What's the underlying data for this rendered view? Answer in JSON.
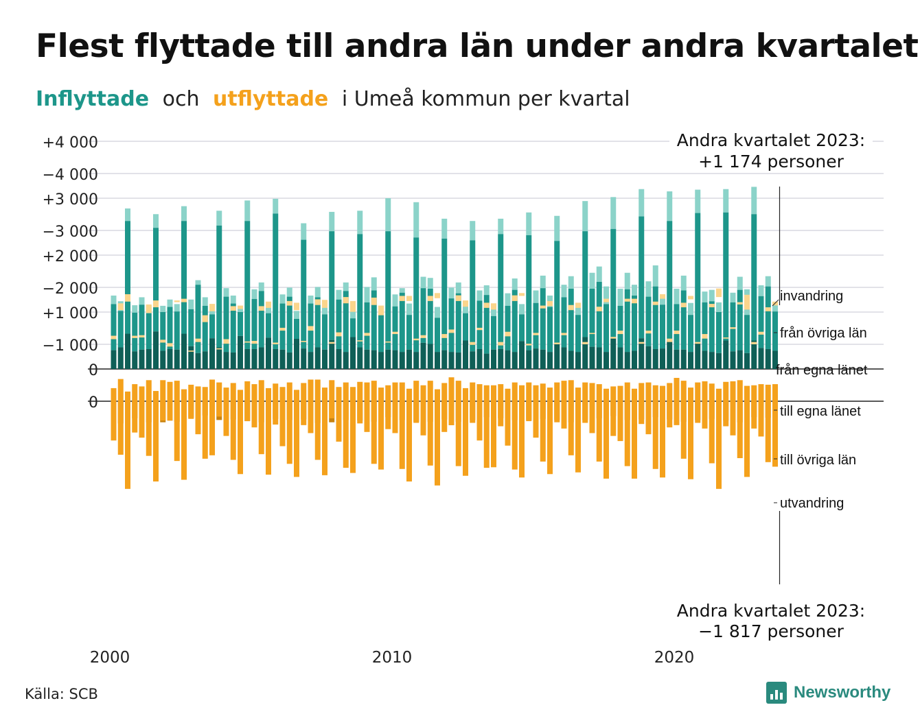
{
  "title": "Flest flyttade till andra län under andra kvartalet",
  "subtitle": {
    "in": "Inflyttade",
    "och": "och",
    "out": "utflyttade",
    "rest": "i Umeå kommun per kvartal"
  },
  "source": "Källa: SCB",
  "brand": "Newsworthy",
  "colors": {
    "in_egna": "#0f5f57",
    "in_ovriga": "#1d968a",
    "in_invandring": "#8bd3c9",
    "out_egna": "#c7820f",
    "out_ovriga": "#f4a11c",
    "out_utvandring": "#fbd58c"
  },
  "chart_data": {
    "type": "bar",
    "stacked": true,
    "x_start": "2000 Q1",
    "x_ticks": [
      "2000",
      "2010",
      "2020"
    ],
    "y_ticks_top": [
      "+4 000",
      "+3 000",
      "+2 000",
      "+1 000",
      "0"
    ],
    "y_ticks_bottom": [
      "0",
      "−1 000",
      "−2 000",
      "−3 000",
      "−4 000"
    ],
    "ylim_top": [
      0,
      4000
    ],
    "ylim_bottom": [
      -4000,
      0
    ],
    "series_labels": {
      "invandring": "invandring",
      "fran_ovriga": "från övriga län",
      "fran_egna": "från egna länet",
      "till_egna": "till egna länet",
      "till_ovriga": "till övriga län",
      "utvandring": "utvandring"
    },
    "annotation_top": {
      "line1": "Andra kvartalet 2023:",
      "line2": "+1 174 personer"
    },
    "annotation_bottom": {
      "line1": "Andra kvartalet 2023:",
      "line2": "−1 817 personer"
    },
    "inflyttade_total": [
      1290,
      1190,
      2820,
      1120,
      1260,
      1120,
      2720,
      1110,
      1220,
      1140,
      2860,
      1220,
      1560,
      1260,
      1080,
      2780,
      1420,
      1290,
      1070,
      2960,
      1400,
      1520,
      1130,
      2990,
      1310,
      1430,
      1020,
      2560,
      1290,
      1440,
      1120,
      2760,
      1390,
      1520,
      1070,
      2780,
      1440,
      1610,
      1080,
      3000,
      1310,
      1420,
      1150,
      2930,
      1620,
      1600,
      1090,
      2640,
      1430,
      1520,
      1150,
      2600,
      1380,
      1470,
      1110,
      2640,
      1330,
      1590,
      1140,
      2750,
      1380,
      1640,
      1290,
      2690,
      1480,
      1630,
      1130,
      2950,
      1690,
      1800,
      1450,
      3020,
      1410,
      1690,
      1480,
      3160,
      1540,
      1820,
      1290,
      3120,
      1410,
      1640,
      1160,
      3150,
      1360,
      1390,
      1170,
      3160,
      1340,
      1620,
      1400,
      3200,
      1470,
      1630,
      1174
    ],
    "inflyttade_ovriga_cum": [
      1140,
      1020,
      2600,
      990,
      1130,
      980,
      2480,
      1000,
      1090,
      1010,
      2600,
      1050,
      1480,
      1110,
      960,
      2520,
      1270,
      1150,
      1000,
      2600,
      1230,
      1370,
      980,
      2730,
      1150,
      1270,
      880,
      2270,
      1150,
      1260,
      960,
      2420,
      1220,
      1370,
      890,
      2370,
      1170,
      1380,
      960,
      2420,
      1100,
      1340,
      950,
      2310,
      1420,
      1410,
      900,
      2290,
      1240,
      1330,
      980,
      2260,
      1200,
      1300,
      930,
      2370,
      1110,
      1390,
      960,
      2350,
      1160,
      1420,
      1090,
      2250,
      1260,
      1410,
      950,
      2420,
      1410,
      1530,
      1140,
      2460,
      1110,
      1400,
      1290,
      2680,
      1270,
      1450,
      1130,
      2600,
      1140,
      1380,
      950,
      2740,
      1170,
      1190,
      1000,
      2750,
      1170,
      1390,
      950,
      2720,
      1280,
      1450,
      1010
    ],
    "inflyttade_egna": [
      330,
      380,
      620,
      310,
      340,
      350,
      660,
      320,
      350,
      340,
      620,
      400,
      280,
      310,
      540,
      380,
      300,
      290,
      580,
      350,
      350,
      380,
      550,
      350,
      340,
      290,
      530,
      360,
      300,
      380,
      340,
      510,
      350,
      300,
      560,
      380,
      340,
      330,
      300,
      340,
      330,
      300,
      340,
      300,
      460,
      440,
      300,
      330,
      300,
      290,
      500,
      310,
      350,
      270,
      340,
      350,
      330,
      300,
      490,
      330,
      360,
      340,
      300,
      440,
      380,
      320,
      300,
      560,
      390,
      380,
      300,
      560,
      380,
      300,
      320,
      540,
      400,
      350,
      360,
      520,
      340,
      340,
      300,
      460,
      320,
      300,
      280,
      500,
      310,
      330,
      280,
      500,
      370,
      350,
      320
    ],
    "utflyttade_egna": [
      230,
      390,
      170,
      300,
      260,
      370,
      180,
      370,
      340,
      360,
      210,
      290,
      260,
      250,
      380,
      330,
      240,
      320,
      200,
      350,
      300,
      370,
      230,
      310,
      250,
      330,
      200,
      320,
      380,
      380,
      240,
      370,
      250,
      330,
      250,
      340,
      330,
      360,
      240,
      280,
      330,
      330,
      220,
      360,
      280,
      360,
      210,
      320,
      420,
      360,
      230,
      330,
      300,
      280,
      280,
      300,
      220,
      330,
      280,
      330,
      280,
      310,
      240,
      330,
      360,
      370,
      240,
      330,
      320,
      300,
      220,
      260,
      270,
      330,
      220,
      320,
      330,
      280,
      270,
      320,
      410,
      360,
      240,
      330,
      350,
      310,
      220,
      340,
      350,
      370,
      270,
      280,
      300,
      290,
      300
    ],
    "utflyttade_ovriga_cum": [
      1150,
      1720,
      1880,
      1150,
      1160,
      1700,
      1770,
      1080,
      1020,
      1770,
      1800,
      890,
      1100,
      1510,
      1710,
      930,
      1090,
      1670,
      1680,
      1050,
      1060,
      1670,
      1750,
      1030,
      1290,
      1760,
      1730,
      1060,
      1320,
      1790,
      1780,
      1040,
      1210,
      1830,
      1760,
      1070,
      1200,
      1820,
      1680,
      1050,
      1220,
      1850,
      1850,
      1100,
      1160,
      1850,
      1900,
      1180,
      1260,
      1860,
      1770,
      1040,
      1290,
      1730,
      1720,
      1040,
      1220,
      1860,
      1900,
      1010,
      1200,
      1680,
      1760,
      1030,
      1200,
      1690,
      1730,
      1040,
      1200,
      1660,
      1800,
      1130,
      1240,
      1800,
      1800,
      1040,
      1240,
      1750,
      1880,
      1100,
      1240,
      1730,
      1850,
      1040,
      1180,
      1710,
      1980,
      1120,
      1300,
      1740,
      1870,
      1040,
      1220,
      1650,
      1750
    ],
    "utflyttade_total": [
      1210,
      1840,
      2010,
      1190,
      1200,
      1850,
      1890,
      1130,
      1080,
      1800,
      1860,
      910,
      1160,
      1630,
      1840,
      950,
      1170,
      1750,
      1740,
      1070,
      1110,
      1750,
      1860,
      1060,
      1340,
      1840,
      1860,
      1080,
      1400,
      1890,
      1920,
      1070,
      1280,
      1940,
      1950,
      1090,
      1250,
      1950,
      1850,
      1070,
      1260,
      1940,
      1940,
      1130,
      1210,
      1940,
      1990,
      1250,
      1320,
      1960,
      1880,
      1090,
      1330,
      1820,
      1830,
      1100,
      1300,
      1960,
      1950,
      1040,
      1240,
      1730,
      1850,
      1060,
      1240,
      1780,
      1820,
      1080,
      1220,
      1740,
      1860,
      1160,
      1300,
      1850,
      1880,
      1070,
      1290,
      1810,
      1960,
      1160,
      1300,
      1810,
      1910,
      1070,
      1260,
      1770,
      2130,
      1140,
      1330,
      1780,
      2130,
      1080,
      1270,
      1720,
      1817
    ]
  }
}
